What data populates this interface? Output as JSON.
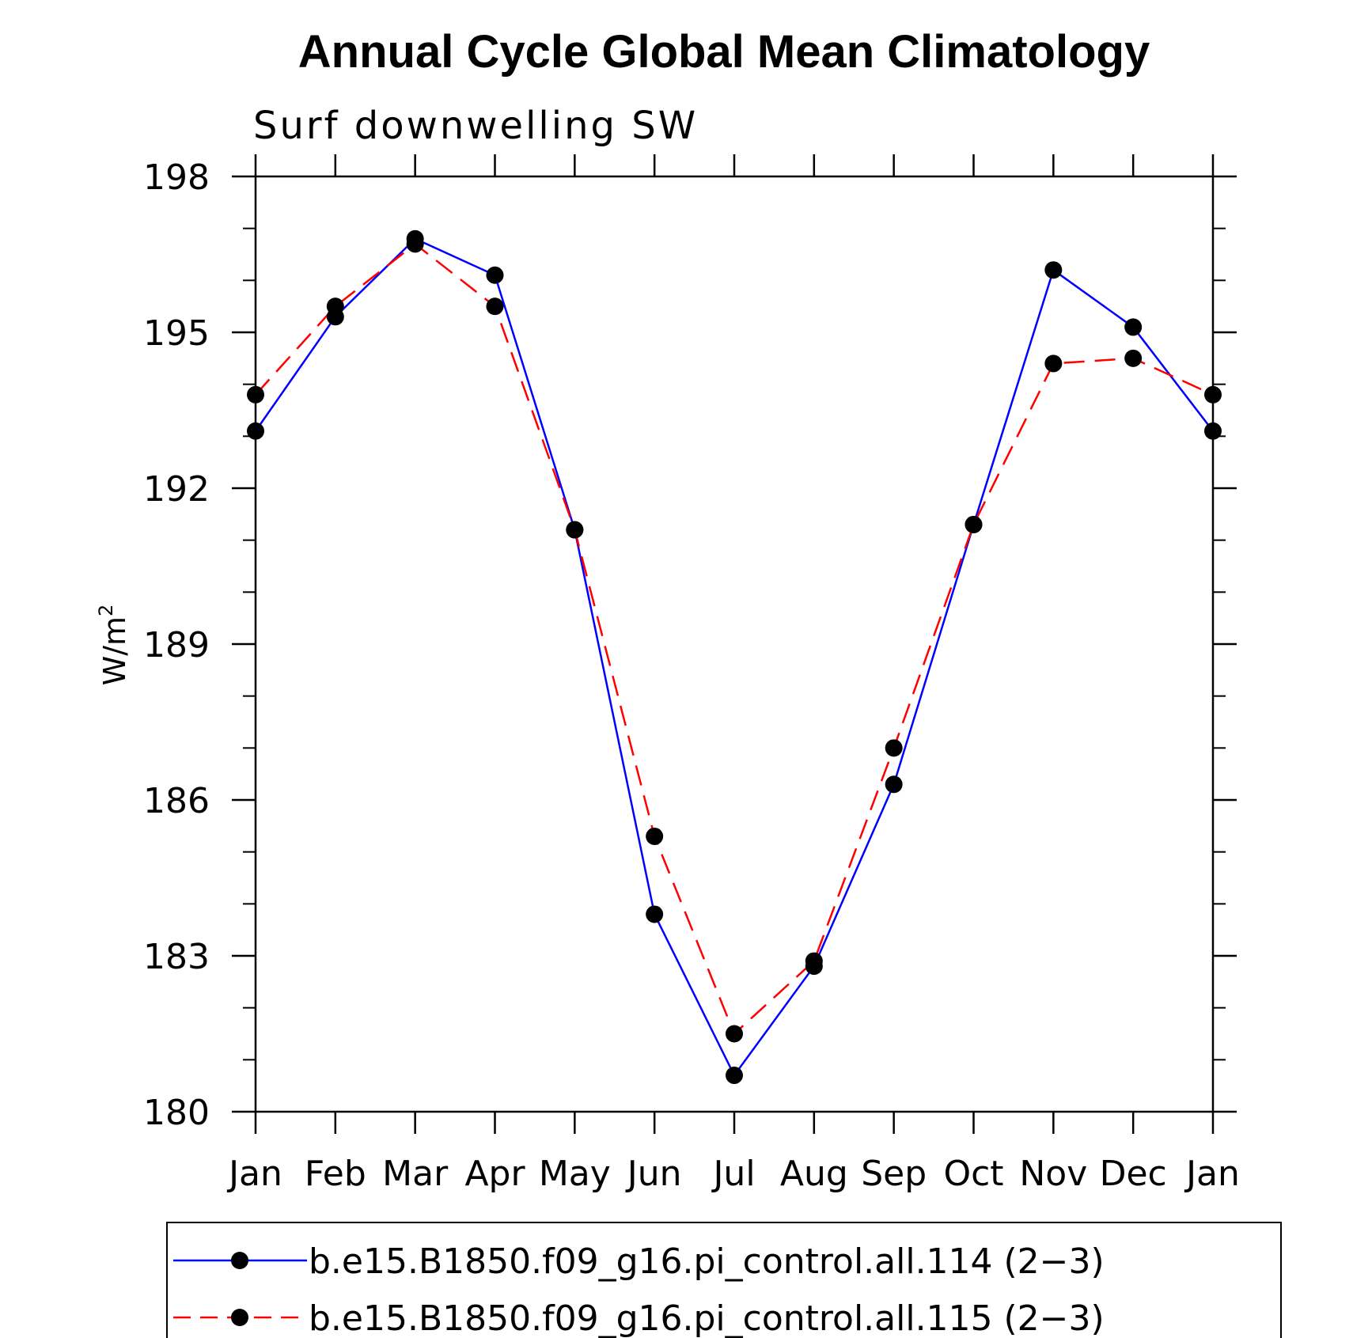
{
  "chart_data": {
    "type": "line",
    "title": "Annual Cycle Global Mean Climatology",
    "subtitle": "Surf downwelling SW",
    "xlabel": "",
    "ylabel": "W/m",
    "ylabel_superscript": "2",
    "categories": [
      "Jan",
      "Feb",
      "Mar",
      "Apr",
      "May",
      "Jun",
      "Jul",
      "Aug",
      "Sep",
      "Oct",
      "Nov",
      "Dec",
      "Jan"
    ],
    "ylim": [
      180,
      198
    ],
    "yticks": [
      180,
      183,
      186,
      189,
      192,
      195,
      198
    ],
    "yminor_step": 1,
    "series": [
      {
        "name": "b.e15.B1850.f09_g16.pi_control.all.114 (2−3)",
        "color": "#0000ff",
        "line_style": "solid",
        "marker": "filled-circle",
        "values": [
          193.1,
          195.3,
          196.8,
          196.1,
          191.2,
          183.8,
          180.7,
          182.8,
          186.3,
          191.3,
          196.2,
          195.1,
          193.1
        ]
      },
      {
        "name": "b.e15.B1850.f09_g16.pi_control.all.115 (2−3)",
        "color": "#ff0000",
        "line_style": "dashed",
        "marker": "filled-circle",
        "values": [
          193.8,
          195.5,
          196.7,
          195.5,
          191.2,
          185.3,
          181.5,
          182.9,
          187.0,
          191.3,
          194.4,
          194.5,
          193.8
        ]
      }
    ],
    "grid": false,
    "legend_position": "bottom"
  }
}
